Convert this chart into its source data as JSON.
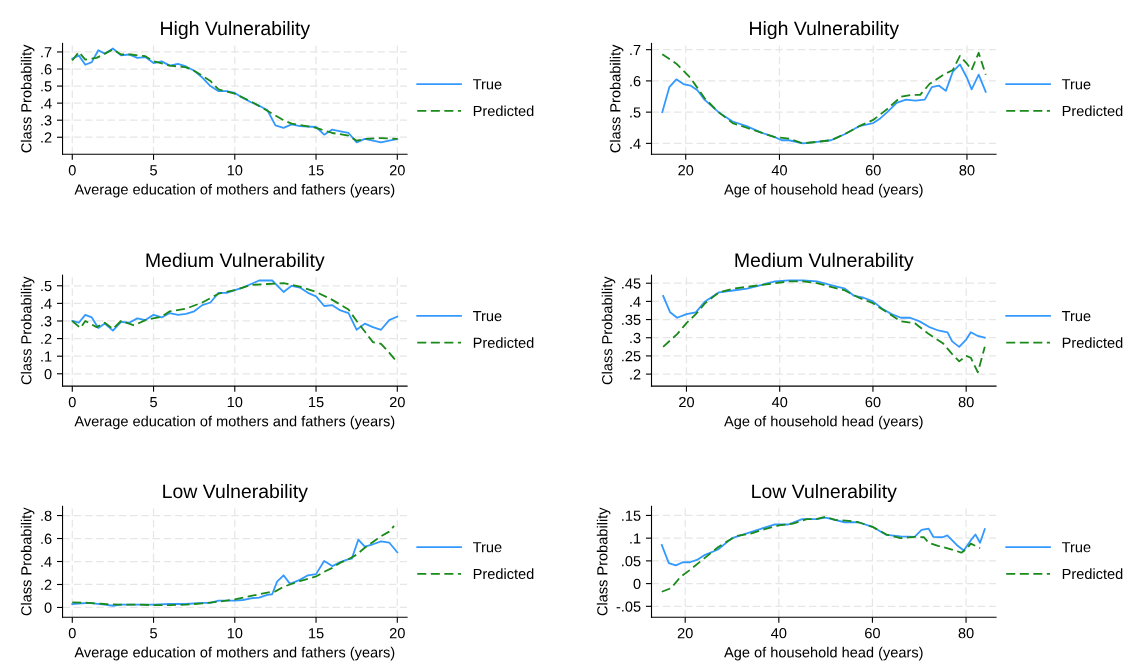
{
  "chart_data": [
    {
      "type": "line",
      "title": "High Vulnerability",
      "xlabel": "Average education of mothers and fathers (years)",
      "ylabel": "Class Probability",
      "xlim": [
        -0.6,
        20.6
      ],
      "ylim": [
        0.1,
        0.75
      ],
      "xticks": [
        0,
        5,
        10,
        15,
        20
      ],
      "yticks": [
        {
          "value": 0.2,
          "label": ".2"
        },
        {
          "value": 0.3,
          "label": ".3"
        },
        {
          "value": 0.4,
          "label": ".4"
        },
        {
          "value": 0.5,
          "label": ".5"
        },
        {
          "value": 0.6,
          "label": ".6"
        },
        {
          "value": 0.7,
          "label": ".7"
        }
      ],
      "grid": true,
      "legend": "right",
      "marker": "none",
      "series": [
        {
          "name": "True",
          "color": "#3399ff",
          "line_style": "solid",
          "x": [
            0,
            0.4,
            0.8,
            1.2,
            1.6,
            2,
            2.5,
            3,
            3.5,
            4,
            4.5,
            5,
            5.5,
            6,
            6.5,
            7,
            7.5,
            8,
            8.5,
            9,
            9.5,
            10,
            10.5,
            11,
            11.5,
            12,
            12.5,
            13,
            13.5,
            14,
            15,
            15.5,
            16,
            16.5,
            17,
            17.5,
            18,
            19,
            19.5,
            20
          ],
          "values": [
            0.66,
            0.68,
            0.625,
            0.64,
            0.71,
            0.69,
            0.72,
            0.68,
            0.685,
            0.665,
            0.67,
            0.635,
            0.645,
            0.62,
            0.63,
            0.615,
            0.59,
            0.55,
            0.5,
            0.47,
            0.47,
            0.46,
            0.43,
            0.405,
            0.385,
            0.36,
            0.27,
            0.255,
            0.275,
            0.265,
            0.26,
            0.215,
            0.245,
            0.235,
            0.225,
            0.17,
            0.19,
            0.17,
            0.18,
            0.19
          ]
        },
        {
          "name": "Predicted",
          "color": "#1a8a1a",
          "line_style": "dashed",
          "x": [
            0,
            0.4,
            0.8,
            1.5,
            2,
            2.5,
            3,
            3.6,
            4.5,
            5,
            6,
            7,
            7.5,
            8.5,
            9,
            10,
            11,
            12,
            13,
            13.5,
            15,
            16,
            17,
            17.5,
            18,
            19,
            20
          ],
          "values": [
            0.65,
            0.7,
            0.655,
            0.665,
            0.69,
            0.715,
            0.685,
            0.685,
            0.675,
            0.645,
            0.62,
            0.61,
            0.59,
            0.53,
            0.48,
            0.455,
            0.41,
            0.355,
            0.3,
            0.28,
            0.255,
            0.225,
            0.21,
            0.18,
            0.19,
            0.195,
            0.19
          ]
        }
      ]
    },
    {
      "type": "line",
      "title": "High Vulnerability",
      "xlabel": "Age of household head (years)",
      "ylabel": "Class Probability",
      "xlim": [
        12.7,
        86.2
      ],
      "ylim": [
        0.365,
        0.72
      ],
      "xticks": [
        20,
        40,
        60,
        80
      ],
      "yticks": [
        {
          "value": 0.4,
          "label": ".4"
        },
        {
          "value": 0.5,
          "label": ".5"
        },
        {
          "value": 0.6,
          "label": ".6"
        },
        {
          "value": 0.7,
          "label": ".7"
        }
      ],
      "grid": true,
      "legend": "right",
      "marker": "none",
      "series": [
        {
          "name": "True",
          "color": "#3399ff",
          "line_style": "solid",
          "x": [
            15,
            16.5,
            18,
            19.5,
            21,
            22.5,
            24,
            27,
            30,
            33,
            36,
            39,
            40.5,
            42,
            45,
            48,
            51,
            54,
            57,
            60,
            61.5,
            63,
            65,
            67,
            69,
            71,
            72.5,
            74,
            75.5,
            77,
            78.5,
            80,
            81,
            82.5,
            84
          ],
          "values": [
            0.5,
            0.58,
            0.605,
            0.59,
            0.585,
            0.57,
            0.54,
            0.5,
            0.47,
            0.455,
            0.435,
            0.42,
            0.41,
            0.41,
            0.4,
            0.405,
            0.41,
            0.43,
            0.455,
            0.465,
            0.48,
            0.5,
            0.53,
            0.54,
            0.537,
            0.54,
            0.58,
            0.585,
            0.568,
            0.63,
            0.653,
            0.61,
            0.573,
            0.62,
            0.565
          ]
        },
        {
          "name": "Predicted",
          "color": "#1a8a1a",
          "line_style": "dashed",
          "x": [
            15,
            18,
            21,
            24,
            27,
            30,
            33,
            36,
            39,
            42,
            45,
            48,
            51,
            54,
            57,
            60,
            63,
            66,
            68,
            70,
            72,
            75,
            77,
            78.5,
            80,
            81,
            82.5,
            84
          ],
          "values": [
            0.685,
            0.655,
            0.61,
            0.545,
            0.5,
            0.465,
            0.45,
            0.435,
            0.42,
            0.415,
            0.4,
            0.405,
            0.41,
            0.43,
            0.455,
            0.475,
            0.51,
            0.55,
            0.555,
            0.555,
            0.59,
            0.62,
            0.635,
            0.68,
            0.655,
            0.635,
            0.69,
            0.62
          ]
        }
      ]
    },
    {
      "type": "line",
      "title": "Medium Vulnerability",
      "xlabel": "Average education of mothers and fathers (years)",
      "ylabel": "Class Probability",
      "xlim": [
        -0.6,
        20.6
      ],
      "ylim": [
        -0.07,
        0.56
      ],
      "xticks": [
        0,
        5,
        10,
        15,
        20
      ],
      "yticks": [
        0,
        {
          "value": 0.1,
          "label": ".1"
        },
        {
          "value": 0.2,
          "label": ".2"
        },
        {
          "value": 0.3,
          "label": ".3"
        },
        {
          "value": 0.4,
          "label": ".4"
        },
        {
          "value": 0.5,
          "label": ".5"
        }
      ],
      "grid": true,
      "legend": "right",
      "marker": "none",
      "series": [
        {
          "name": "True",
          "color": "#3399ff",
          "line_style": "solid",
          "x": [
            0,
            0.4,
            0.8,
            1.2,
            1.6,
            2,
            2.5,
            3,
            3.5,
            4,
            4.5,
            5,
            5.5,
            6,
            6.5,
            7,
            7.5,
            8,
            8.5,
            9,
            9.5,
            10,
            10.5,
            11,
            11.5,
            12.3,
            13,
            13.5,
            14,
            14.5,
            15,
            15.5,
            16,
            16.5,
            17,
            17.5,
            18,
            18.5,
            19,
            19.5,
            20
          ],
          "values": [
            0.3,
            0.29,
            0.335,
            0.32,
            0.26,
            0.285,
            0.245,
            0.295,
            0.29,
            0.315,
            0.305,
            0.335,
            0.32,
            0.345,
            0.335,
            0.34,
            0.355,
            0.39,
            0.405,
            0.46,
            0.46,
            0.475,
            0.49,
            0.51,
            0.53,
            0.53,
            0.465,
            0.5,
            0.49,
            0.46,
            0.44,
            0.385,
            0.39,
            0.36,
            0.345,
            0.25,
            0.285,
            0.265,
            0.25,
            0.305,
            0.325
          ]
        },
        {
          "name": "Predicted",
          "color": "#1a8a1a",
          "line_style": "dashed",
          "x": [
            0,
            0.5,
            0.8,
            1.5,
            2,
            2.5,
            3,
            3.8,
            4.5,
            5.5,
            6,
            7,
            8,
            9,
            10,
            11,
            12,
            13,
            14,
            15,
            16,
            17,
            17.5,
            18,
            18.5,
            19,
            19.5,
            20
          ],
          "values": [
            0.3,
            0.26,
            0.3,
            0.265,
            0.29,
            0.255,
            0.3,
            0.275,
            0.305,
            0.325,
            0.355,
            0.37,
            0.405,
            0.455,
            0.475,
            0.505,
            0.51,
            0.515,
            0.495,
            0.465,
            0.42,
            0.365,
            0.3,
            0.24,
            0.18,
            0.17,
            0.12,
            0.065
          ]
        }
      ]
    },
    {
      "type": "line",
      "title": "Medium Vulnerability",
      "xlabel": "Age of household head (years)",
      "ylabel": "Class Probability",
      "xlim": [
        12.5,
        86.4
      ],
      "ylim": [
        0.167,
        0.472
      ],
      "xticks": [
        20,
        40,
        60,
        80
      ],
      "yticks": [
        {
          "value": 0.2,
          "label": ".2"
        },
        {
          "value": 0.25,
          "label": ".25"
        },
        {
          "value": 0.3,
          "label": ".3"
        },
        {
          "value": 0.35,
          "label": ".35"
        },
        {
          "value": 0.4,
          "label": ".4"
        },
        {
          "value": 0.45,
          "label": ".45"
        }
      ],
      "grid": true,
      "legend": "right",
      "marker": "none",
      "series": [
        {
          "name": "True",
          "color": "#3399ff",
          "line_style": "solid",
          "x": [
            15,
            16.5,
            18,
            20,
            22,
            24,
            27,
            30,
            33,
            36,
            39,
            42,
            45,
            48,
            51,
            54,
            56,
            58,
            60,
            62,
            64,
            66,
            68,
            70,
            72,
            74,
            76,
            77,
            78.5,
            80,
            81,
            82.5,
            84
          ],
          "values": [
            0.415,
            0.37,
            0.355,
            0.365,
            0.37,
            0.4,
            0.425,
            0.43,
            0.435,
            0.445,
            0.455,
            0.458,
            0.458,
            0.455,
            0.445,
            0.435,
            0.415,
            0.41,
            0.4,
            0.38,
            0.365,
            0.355,
            0.355,
            0.345,
            0.33,
            0.32,
            0.315,
            0.29,
            0.275,
            0.295,
            0.315,
            0.305,
            0.3
          ]
        },
        {
          "name": "Predicted",
          "color": "#1a8a1a",
          "line_style": "dashed",
          "x": [
            15,
            18,
            20,
            22,
            24,
            27,
            30,
            33,
            36,
            39,
            42,
            45,
            48,
            51,
            54,
            57,
            60,
            63,
            66,
            69,
            72,
            75,
            77,
            78.5,
            80,
            81,
            82.5,
            84
          ],
          "values": [
            0.275,
            0.31,
            0.34,
            0.365,
            0.395,
            0.425,
            0.435,
            0.44,
            0.445,
            0.45,
            0.455,
            0.455,
            0.45,
            0.44,
            0.43,
            0.41,
            0.395,
            0.37,
            0.345,
            0.34,
            0.31,
            0.285,
            0.255,
            0.235,
            0.25,
            0.245,
            0.205,
            0.275
          ]
        }
      ]
    },
    {
      "type": "line",
      "title": "Low Vulnerability",
      "xlabel": "Average education of mothers and fathers (years)",
      "ylabel": "Class Probability",
      "xlim": [
        -0.6,
        20.6
      ],
      "ylim": [
        -0.085,
        0.88
      ],
      "xticks": [
        0,
        5,
        10,
        15,
        20
      ],
      "yticks": [
        0,
        {
          "value": 0.2,
          "label": ".2"
        },
        {
          "value": 0.4,
          "label": ".4"
        },
        {
          "value": 0.6,
          "label": ".6"
        },
        {
          "value": 0.8,
          "label": ".8"
        }
      ],
      "grid": true,
      "legend": "right",
      "marker": "none",
      "series": [
        {
          "name": "True",
          "color": "#3399ff",
          "line_style": "solid",
          "x": [
            0,
            1,
            2,
            2.5,
            3,
            4,
            5,
            6,
            7,
            8,
            8.5,
            9,
            10,
            10.5,
            11,
            11.5,
            12,
            12.3,
            12.6,
            13,
            13.4,
            14,
            14.5,
            15,
            15.5,
            16,
            16.5,
            17,
            17.2,
            17.6,
            18,
            18.5,
            19,
            19.5,
            20
          ],
          "values": [
            0.03,
            0.04,
            0.025,
            0.015,
            0.025,
            0.025,
            0.025,
            0.03,
            0.03,
            0.04,
            0.04,
            0.06,
            0.06,
            0.065,
            0.08,
            0.085,
            0.11,
            0.115,
            0.225,
            0.28,
            0.205,
            0.24,
            0.28,
            0.29,
            0.405,
            0.36,
            0.395,
            0.42,
            0.425,
            0.59,
            0.53,
            0.55,
            0.575,
            0.565,
            0.48
          ]
        },
        {
          "name": "Predicted",
          "color": "#1a8a1a",
          "line_style": "dashed",
          "x": [
            0,
            1,
            2,
            3,
            4,
            5,
            6,
            7,
            8,
            9,
            10,
            11,
            12,
            12.5,
            13,
            14,
            15,
            15.5,
            16,
            16.5,
            17,
            17.5,
            18,
            18.5,
            19,
            19.5,
            19.8
          ],
          "values": [
            0.045,
            0.04,
            0.03,
            0.025,
            0.025,
            0.02,
            0.02,
            0.025,
            0.035,
            0.05,
            0.07,
            0.1,
            0.13,
            0.14,
            0.18,
            0.23,
            0.27,
            0.31,
            0.345,
            0.39,
            0.42,
            0.46,
            0.52,
            0.57,
            0.62,
            0.66,
            0.71
          ]
        }
      ]
    },
    {
      "type": "line",
      "title": "Low Vulnerability",
      "xlabel": "Age of household head (years)",
      "ylabel": "Class Probability",
      "xlim": [
        12.8,
        86.4
      ],
      "ylim": [
        -0.074,
        0.17
      ],
      "xticks": [
        20,
        40,
        60,
        80
      ],
      "yticks": [
        {
          "value": -0.05,
          "label": "-.05"
        },
        0,
        {
          "value": 0.05,
          "label": ".05"
        },
        {
          "value": 0.1,
          "label": ".1"
        },
        {
          "value": 0.15,
          "label": ".15"
        }
      ],
      "grid": true,
      "legend": "right",
      "marker": "none",
      "series": [
        {
          "name": "True",
          "color": "#3399ff",
          "line_style": "solid",
          "x": [
            15,
            16.5,
            18,
            19.5,
            21,
            22.5,
            24,
            27,
            30,
            33,
            36,
            39,
            40.5,
            42,
            45,
            48,
            50,
            52,
            54,
            57,
            60,
            63,
            66,
            69,
            70.5,
            72,
            73,
            75,
            76,
            78,
            79.5,
            81,
            82,
            83,
            84
          ],
          "values": [
            0.085,
            0.045,
            0.04,
            0.047,
            0.047,
            0.052,
            0.062,
            0.075,
            0.1,
            0.11,
            0.12,
            0.13,
            0.13,
            0.13,
            0.142,
            0.142,
            0.145,
            0.14,
            0.135,
            0.135,
            0.125,
            0.107,
            0.104,
            0.103,
            0.118,
            0.121,
            0.103,
            0.102,
            0.106,
            0.085,
            0.073,
            0.095,
            0.108,
            0.09,
            0.12
          ]
        },
        {
          "name": "Predicted",
          "color": "#1a8a1a",
          "line_style": "dashed",
          "x": [
            15,
            17,
            19,
            21,
            24,
            27,
            29,
            31,
            34,
            37,
            40,
            43,
            46,
            48,
            50,
            52,
            55,
            57,
            60,
            63,
            66,
            69,
            71,
            72,
            74,
            77,
            79,
            80,
            81,
            83
          ],
          "values": [
            -0.018,
            -0.01,
            0.015,
            0.03,
            0.055,
            0.08,
            0.093,
            0.105,
            0.11,
            0.12,
            0.128,
            0.132,
            0.142,
            0.142,
            0.147,
            0.14,
            0.138,
            0.135,
            0.125,
            0.108,
            0.1,
            0.103,
            0.102,
            0.09,
            0.083,
            0.075,
            0.068,
            0.075,
            0.088,
            0.078
          ]
        }
      ]
    }
  ]
}
